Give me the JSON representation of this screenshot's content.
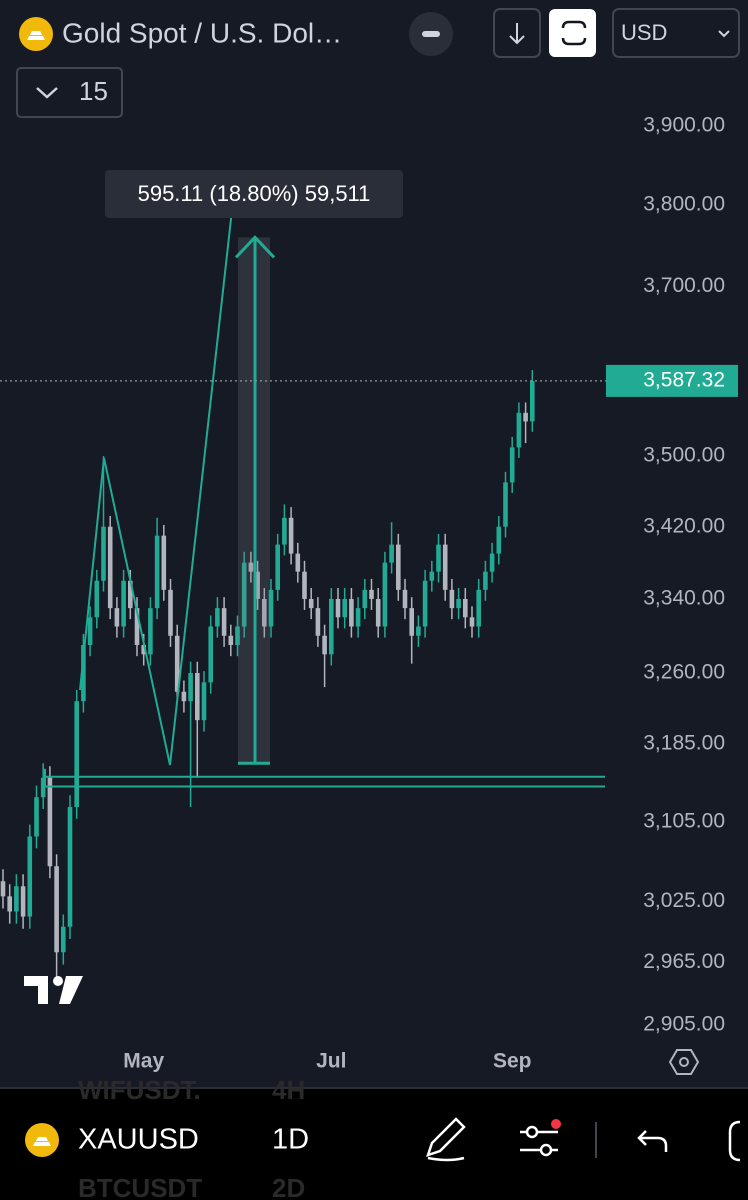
{
  "header": {
    "symbol_title": "Gold Spot / U.S. Dol…",
    "currency": "USD",
    "interval_count": "15"
  },
  "chart_data": {
    "type": "candlestick",
    "categories": [
      null,
      null,
      null,
      null,
      null,
      null,
      null,
      null,
      null,
      null,
      null,
      null,
      null,
      null,
      null,
      null,
      null,
      null,
      null,
      null,
      null,
      "May",
      null,
      null,
      null,
      null,
      null,
      null,
      null,
      null,
      null,
      null,
      null,
      null,
      null,
      null,
      null,
      null,
      null,
      null,
      null,
      null,
      null,
      null,
      null,
      null,
      null,
      null,
      null,
      "Jul",
      null,
      null,
      null,
      null,
      null,
      null,
      null,
      null,
      null,
      null,
      null,
      null,
      null,
      null,
      null,
      null,
      null,
      null,
      null,
      null,
      null,
      null,
      null,
      null,
      null,
      null,
      "Sep",
      null,
      null,
      null
    ],
    "open": [
      3045,
      3030,
      3015,
      3040,
      3010,
      3090,
      3130,
      3150,
      3060,
      2975,
      3000,
      3120,
      3230,
      3290,
      3320,
      3360,
      3420,
      3330,
      3310,
      3360,
      3330,
      3290,
      3280,
      3330,
      3410,
      3350,
      3300,
      3240,
      3230,
      3260,
      3210,
      3250,
      3310,
      3330,
      3300,
      3290,
      3310,
      3380,
      3370,
      3340,
      3310,
      3350,
      3400,
      3430,
      3390,
      3370,
      3340,
      3330,
      3300,
      3280,
      3340,
      3320,
      3340,
      3310,
      3330,
      3350,
      3340,
      3310,
      3380,
      3400,
      3350,
      3330,
      3300,
      3310,
      3360,
      3370,
      3400,
      3350,
      3330,
      3340,
      3320,
      3310,
      3350,
      3370,
      3390,
      3420,
      3470,
      3510,
      3550,
      3540
    ],
    "high": [
      3057,
      3042,
      3052,
      3052,
      3102,
      3142,
      3165,
      3162,
      3072,
      3012,
      3132,
      3242,
      3302,
      3332,
      3372,
      3500,
      3432,
      3342,
      3372,
      3372,
      3342,
      3302,
      3342,
      3430,
      3422,
      3362,
      3312,
      3252,
      3272,
      3272,
      3262,
      3322,
      3342,
      3342,
      3312,
      3322,
      3392,
      3392,
      3382,
      3352,
      3362,
      3412,
      3445,
      3442,
      3402,
      3382,
      3352,
      3342,
      3312,
      3352,
      3352,
      3352,
      3352,
      3342,
      3362,
      3362,
      3352,
      3392,
      3425,
      3412,
      3362,
      3342,
      3322,
      3372,
      3382,
      3412,
      3412,
      3362,
      3352,
      3352,
      3332,
      3362,
      3382,
      3402,
      3432,
      3482,
      3522,
      3562,
      3562,
      3600
    ],
    "low": [
      3018,
      3003,
      3003,
      2998,
      2998,
      3078,
      3118,
      3048,
      2950,
      2963,
      2988,
      3108,
      3218,
      3278,
      3308,
      3348,
      3318,
      3298,
      3298,
      3318,
      3278,
      3268,
      3268,
      3318,
      3338,
      3288,
      3228,
      3218,
      3120,
      3150,
      3198,
      3238,
      3298,
      3288,
      3278,
      3278,
      3298,
      3358,
      3328,
      3298,
      3298,
      3338,
      3388,
      3378,
      3358,
      3328,
      3318,
      3288,
      3245,
      3268,
      3308,
      3308,
      3298,
      3298,
      3318,
      3328,
      3298,
      3298,
      3368,
      3338,
      3318,
      3270,
      3288,
      3298,
      3348,
      3358,
      3338,
      3318,
      3318,
      3308,
      3298,
      3298,
      3338,
      3358,
      3378,
      3408,
      3458,
      3498,
      3515,
      3528
    ],
    "close": [
      3030,
      3015,
      3040,
      3010,
      3090,
      3130,
      3150,
      3060,
      2975,
      3000,
      3120,
      3230,
      3290,
      3320,
      3360,
      3420,
      3330,
      3310,
      3360,
      3330,
      3290,
      3280,
      3330,
      3410,
      3350,
      3300,
      3240,
      3230,
      3260,
      3210,
      3250,
      3310,
      3330,
      3300,
      3290,
      3310,
      3380,
      3370,
      3340,
      3310,
      3350,
      3400,
      3430,
      3390,
      3370,
      3340,
      3330,
      3300,
      3280,
      3340,
      3320,
      3340,
      3310,
      3330,
      3350,
      3340,
      3310,
      3380,
      3400,
      3350,
      3330,
      3300,
      3310,
      3360,
      3370,
      3400,
      3350,
      3330,
      3340,
      3320,
      3310,
      3350,
      3370,
      3390,
      3420,
      3470,
      3510,
      3550,
      3540,
      3587
    ],
    "up_color": "#22ab94",
    "down_color": "#b2b5be",
    "ylim": [
      2886,
      4064
    ],
    "log_scale": true,
    "grid": false,
    "yticks": [
      {
        "value": 3900,
        "label": "3,900.00"
      },
      {
        "value": 3800,
        "label": "3,800.00"
      },
      {
        "value": 3700,
        "label": "3,700.00"
      },
      {
        "value": 3500,
        "label": "3,500.00"
      },
      {
        "value": 3420,
        "label": "3,420.00"
      },
      {
        "value": 3340,
        "label": "3,340.00"
      },
      {
        "value": 3260,
        "label": "3,260.00"
      },
      {
        "value": 3185,
        "label": "3,185.00"
      },
      {
        "value": 3105,
        "label": "3,105.00"
      },
      {
        "value": 3025,
        "label": "3,025.00"
      },
      {
        "value": 2965,
        "label": "2,965.00"
      },
      {
        "value": 2905,
        "label": "2,905.00"
      }
    ],
    "last_price": {
      "value": 3587.32,
      "label": "3,587.32"
    },
    "measure": {
      "from": 3165,
      "to": 3760,
      "label": "595.11 (18.80%) 59,511"
    },
    "levels": [
      3151,
      3141
    ]
  },
  "toolbar": {
    "symbol": "XAUUSD",
    "interval": "1D",
    "ghost_above": [
      "WIFUSDT.",
      "4H"
    ],
    "ghost_below": [
      "BTCUSDT",
      "2D"
    ]
  }
}
